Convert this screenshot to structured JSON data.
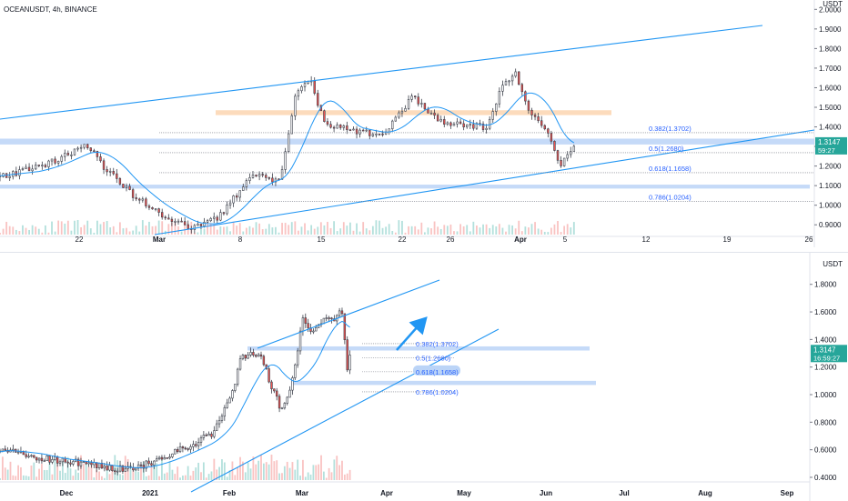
{
  "header": {
    "title": "OCEANUSDT, 4h, BINANCE"
  },
  "colors": {
    "up": "#26a69a",
    "down": "#ef5350",
    "candle": "#555d6b",
    "trend": "#2196f3",
    "zone_blue": "#bbd4f7",
    "zone_orange": "#fcd5b0",
    "fib_text": "#2962ff",
    "price_tag": "#26a69a"
  },
  "chart_data": [
    {
      "type": "candlestick",
      "panel": "top",
      "timeframe": "4h",
      "y_ticks": [
        "2.0000",
        "1.9000",
        "1.8000",
        "1.7000",
        "1.6000",
        "1.5000",
        "1.4000",
        "1.3000",
        "1.2000",
        "1.1000",
        "1.0000",
        "0.9000"
      ],
      "ylim": [
        0.85,
        2.02
      ],
      "x_ticks": [
        "22",
        "Mar",
        "8",
        "15",
        "22",
        "26",
        "Apr",
        "5",
        "12",
        "19",
        "26"
      ],
      "current_price": "1.3147",
      "countdown": "59:27",
      "fib_levels": [
        {
          "label": "0.382(1.3702)",
          "value": 1.3702
        },
        {
          "label": "0.5(1.2680)",
          "value": 1.268
        },
        {
          "label": "0.618(1.1658)",
          "value": 1.1658
        },
        {
          "label": "0.786(1.0204)",
          "value": 1.0204
        }
      ],
      "zones": [
        {
          "color": "blue",
          "from": 1.34,
          "to": 1.31
        },
        {
          "color": "blue",
          "from": 1.105,
          "to": 1.085
        },
        {
          "color": "orange",
          "from": 1.485,
          "to": 1.46
        }
      ],
      "trend_lines": [
        {
          "points": [
            [
              "start",
              1.38
            ],
            [
              "Apr 19",
              1.9
            ]
          ]
        },
        {
          "points": [
            [
              "Mar",
              0.85
            ],
            [
              "Apr 26",
              1.35
            ]
          ]
        }
      ],
      "price_path": [
        [
          "Feb 15",
          1.15
        ],
        [
          "Feb 18",
          1.2
        ],
        [
          "Feb 20",
          1.28
        ],
        [
          "Feb 21",
          1.3
        ],
        [
          "Feb 22",
          1.2
        ],
        [
          "Feb 24",
          1.05
        ],
        [
          "Feb 26",
          0.95
        ],
        [
          "Feb 28",
          0.88
        ],
        [
          "Mar 2",
          0.95
        ],
        [
          "Mar 4",
          1.15
        ],
        [
          "Mar 6",
          1.12
        ],
        [
          "Mar 7",
          1.55
        ],
        [
          "Mar 8",
          1.66
        ],
        [
          "Mar 9",
          1.42
        ],
        [
          "Mar 11",
          1.38
        ],
        [
          "Mar 13",
          1.36
        ],
        [
          "Mar 15",
          1.56
        ],
        [
          "Mar 17",
          1.42
        ],
        [
          "Mar 20",
          1.4
        ],
        [
          "Mar 21",
          1.6
        ],
        [
          "Mar 22",
          1.67
        ],
        [
          "Mar 23",
          1.45
        ],
        [
          "Mar 24",
          1.4
        ],
        [
          "Mar 25",
          1.2
        ],
        [
          "Mar 26",
          1.31
        ]
      ]
    },
    {
      "type": "candlestick",
      "panel": "bottom",
      "timeframe": "1d",
      "y_ticks": [
        "1.8000",
        "1.6000",
        "1.4000",
        "1.2000",
        "1.0000",
        "0.8000",
        "0.6000",
        "0.4000"
      ],
      "ylim": [
        0.38,
        1.95
      ],
      "x_ticks": [
        "Dec",
        "2021",
        "Feb",
        "Mar",
        "Apr",
        "May",
        "Jun",
        "Jul",
        "Aug",
        "Sep"
      ],
      "current_price": "1.3147",
      "countdown": "16:59:27",
      "fib_levels": [
        {
          "label": "0.382(1.3702)",
          "value": 1.3702
        },
        {
          "label": "0.5(1.2680)",
          "value": 1.268
        },
        {
          "label": "0.618(1.1658)",
          "value": 1.1658
        },
        {
          "label": "0.786(1.0204)",
          "value": 1.0204
        }
      ],
      "zones": [
        {
          "color": "blue",
          "from": 1.35,
          "to": 1.32
        },
        {
          "color": "blue",
          "from": 1.1,
          "to": 1.07
        }
      ],
      "price_path": [
        [
          "Nov 5",
          0.55
        ],
        [
          "Nov 15",
          0.6
        ],
        [
          "Nov 25",
          0.55
        ],
        [
          "Dec 5",
          0.52
        ],
        [
          "Dec 15",
          0.5
        ],
        [
          "Dec 25",
          0.46
        ],
        [
          "Jan 5",
          0.48
        ],
        [
          "Jan 15",
          0.56
        ],
        [
          "Jan 25",
          0.64
        ],
        [
          "Feb 1",
          0.72
        ],
        [
          "Feb 8",
          0.95
        ],
        [
          "Feb 12",
          1.25
        ],
        [
          "Feb 16",
          1.3
        ],
        [
          "Feb 20",
          1.3
        ],
        [
          "Feb 24",
          1.05
        ],
        [
          "Feb 28",
          0.88
        ],
        [
          "Mar 4",
          1.1
        ],
        [
          "Mar 8",
          1.55
        ],
        [
          "Mar 12",
          1.45
        ],
        [
          "Mar 16",
          1.55
        ],
        [
          "Mar 20",
          1.55
        ],
        [
          "Mar 23",
          1.6
        ],
        [
          "Mar 25",
          1.2
        ],
        [
          "Mar 26",
          1.31
        ]
      ]
    }
  ],
  "bottom": {
    "unit": "USDT"
  },
  "top_unit": "USDT"
}
